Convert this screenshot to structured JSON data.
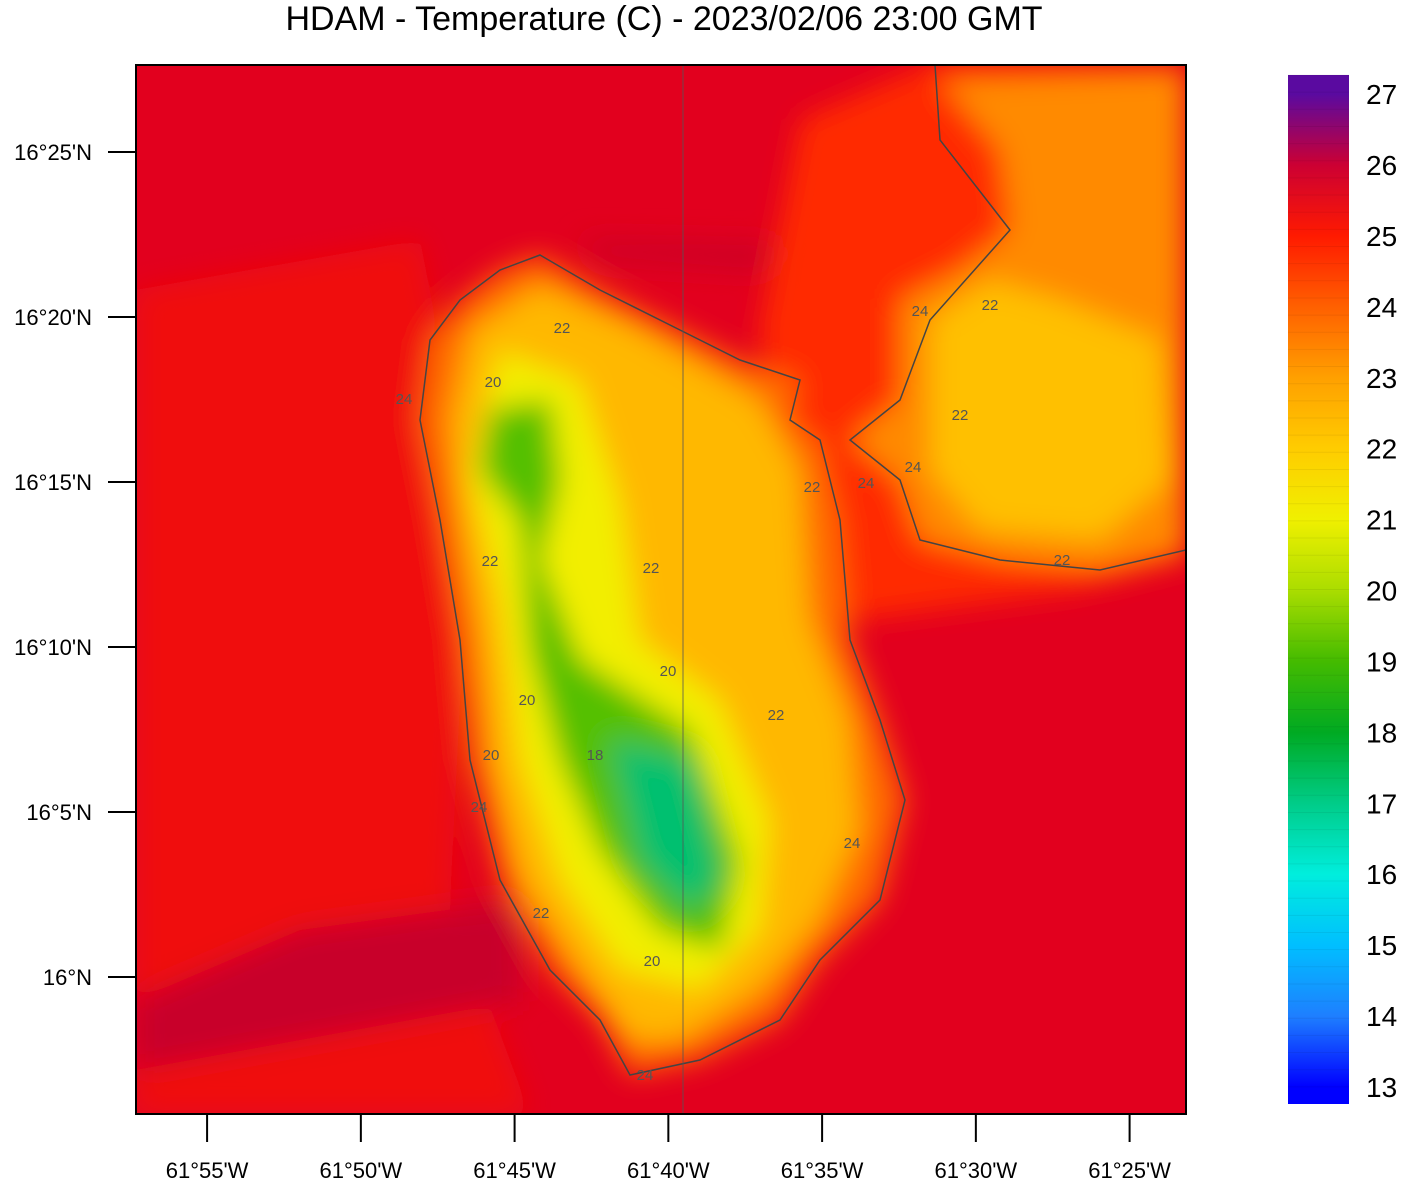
{
  "chart_data": {
    "type": "map",
    "title": "HDAM - Temperature (C)  -  2023/02/06  23:00 GMT",
    "xlim": [
      -61.9552,
      -61.3861
    ],
    "ylim": [
      15.9308,
      16.4606
    ],
    "xticks": [
      {
        "value": -61.91667,
        "label": "61°55'W"
      },
      {
        "value": -61.83333,
        "label": "61°50'W"
      },
      {
        "value": -61.75,
        "label": "61°45'W"
      },
      {
        "value": -61.66667,
        "label": "61°40'W"
      },
      {
        "value": -61.58333,
        "label": "61°35'W"
      },
      {
        "value": -61.5,
        "label": "61°30'W"
      },
      {
        "value": -61.41667,
        "label": "61°25'W"
      }
    ],
    "yticks": [
      {
        "value": 16.41667,
        "label": "16°25'N"
      },
      {
        "value": 16.33333,
        "label": "16°20'N"
      },
      {
        "value": 16.25,
        "label": "16°15'N"
      },
      {
        "value": 16.16667,
        "label": "16°10'N"
      },
      {
        "value": 16.08333,
        "label": "16°5'N"
      },
      {
        "value": 16.0,
        "label": "16°N"
      }
    ],
    "colorbar": {
      "lim": [
        12.76,
        27.27
      ],
      "ticks": [
        13,
        14,
        15,
        16,
        17,
        18,
        19,
        20,
        21,
        22,
        23,
        24,
        25,
        26,
        27
      ],
      "colors": [
        "#0000ff",
        "#1e7fff",
        "#00bfff",
        "#00eedd",
        "#00cc88",
        "#00aa22",
        "#44bb00",
        "#aadd00",
        "#f0f000",
        "#ffcc00",
        "#ffa000",
        "#ff6000",
        "#ff1a00",
        "#cc0033",
        "#5a0aa0"
      ]
    },
    "contour_labels": [
      22,
      20,
      24,
      22,
      22,
      24,
      22,
      24,
      22,
      22,
      24,
      22,
      20,
      22,
      20,
      20,
      18,
      24,
      22,
      20,
      24,
      24
    ]
  }
}
